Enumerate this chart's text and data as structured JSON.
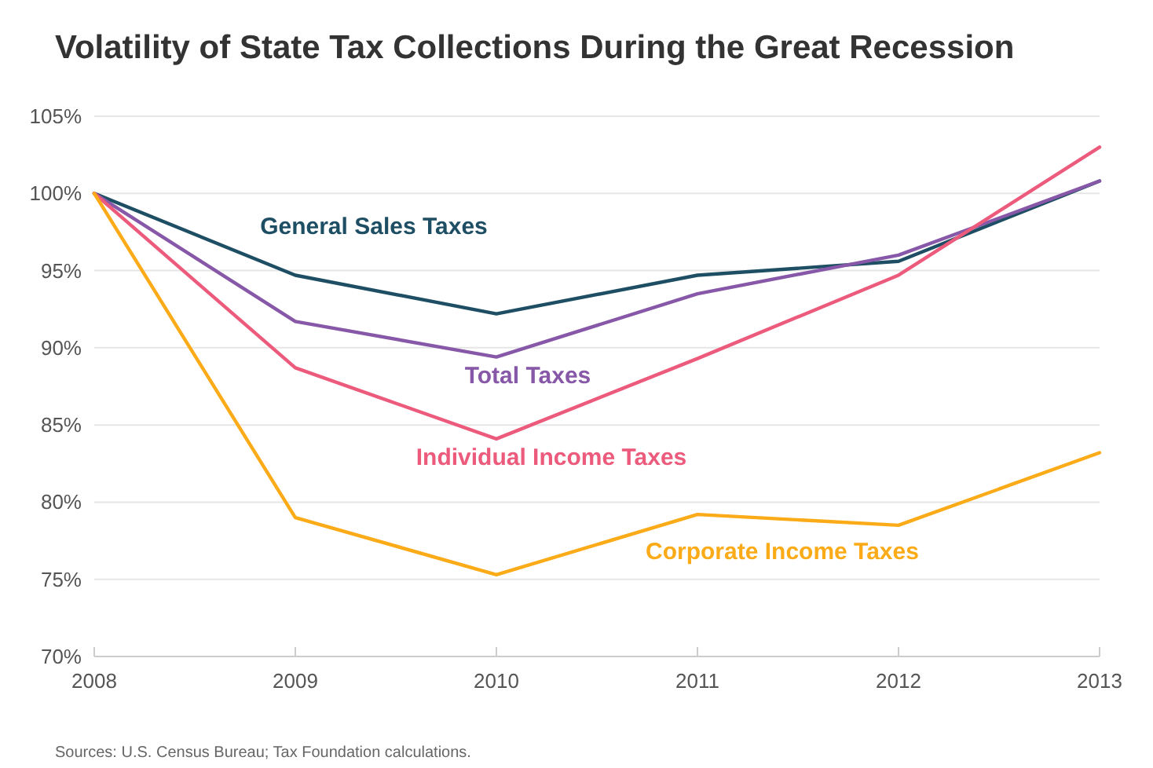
{
  "chart_data": {
    "type": "line",
    "title": "Volatility of State Tax Collections During the Great Recession",
    "x": [
      2008,
      2009,
      2010,
      2011,
      2012,
      2013
    ],
    "xlim": [
      2008,
      2013
    ],
    "xticks": [
      2008,
      2009,
      2010,
      2011,
      2012,
      2013
    ],
    "ylim": [
      70,
      105
    ],
    "yticks": [
      {
        "value": 70,
        "label": "70%"
      },
      {
        "value": 75,
        "label": "75%"
      },
      {
        "value": 80,
        "label": "80%"
      },
      {
        "value": 85,
        "label": "85%"
      },
      {
        "value": 90,
        "label": "90%"
      },
      {
        "value": 95,
        "label": "95%"
      },
      {
        "value": 100,
        "label": "100%"
      },
      {
        "value": 105,
        "label": "105%"
      }
    ],
    "grid": "y",
    "legend": false,
    "marker": "none",
    "line_style": "solid",
    "series": [
      {
        "name": "General Sales Taxes",
        "color": "#1d4e63",
        "values": [
          100,
          94.7,
          92.2,
          94.7,
          95.6,
          100.8
        ]
      },
      {
        "name": "Total Taxes",
        "color": "#8757a8",
        "values": [
          100,
          91.7,
          89.4,
          93.5,
          96.0,
          100.8
        ]
      },
      {
        "name": "Individual Income Taxes",
        "color": "#ec5a7c",
        "values": [
          100,
          88.7,
          84.1,
          89.3,
          94.7,
          103.0
        ]
      },
      {
        "name": "Corporate Income Taxes",
        "color": "#fbab18",
        "values": [
          100,
          79.0,
          75.3,
          79.2,
          78.5,
          83.2
        ]
      }
    ],
    "annotations": [
      "Sources: U.S. Census Bureau; Tax Foundation calculations."
    ]
  }
}
